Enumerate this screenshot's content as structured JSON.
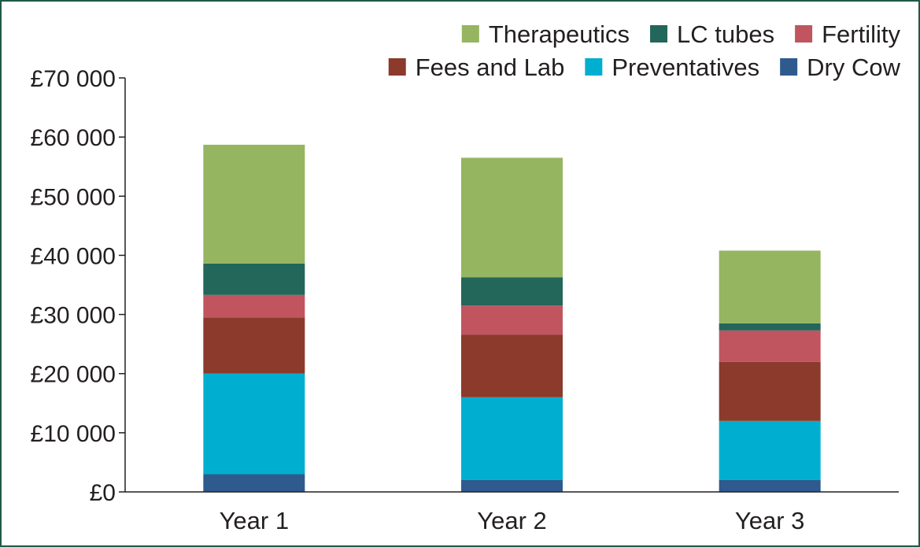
{
  "chart_data": {
    "type": "bar",
    "stacked": true,
    "categories": [
      "Year 1",
      "Year 2",
      "Year 3"
    ],
    "series": [
      {
        "name": "Dry Cow",
        "color": "#2e5a8e",
        "values": [
          3000,
          2000,
          2000
        ]
      },
      {
        "name": "Preventatives",
        "color": "#00afcf",
        "values": [
          17000,
          14000,
          10000
        ]
      },
      {
        "name": "Fees and Lab",
        "color": "#8b3a2b",
        "values": [
          9500,
          10600,
          10000
        ]
      },
      {
        "name": "Fertility",
        "color": "#c05560",
        "values": [
          3800,
          4900,
          5300
        ]
      },
      {
        "name": "LC tubes",
        "color": "#23665a",
        "values": [
          5300,
          4800,
          1200
        ]
      },
      {
        "name": "Therapeutics",
        "color": "#95b560",
        "values": [
          20100,
          20200,
          12300
        ]
      }
    ],
    "y_ticks": [
      "£0",
      "£10 000",
      "£20 000",
      "£30 000",
      "£40 000",
      "£50 000",
      "£60 000",
      "£70 000"
    ],
    "ylim": [
      0,
      70000
    ],
    "grid": false,
    "legend_position": "top-right",
    "legend_order": [
      "Therapeutics",
      "LC tubes",
      "Fertility",
      "Fees and Lab",
      "Preventatives",
      "Dry Cow"
    ]
  }
}
